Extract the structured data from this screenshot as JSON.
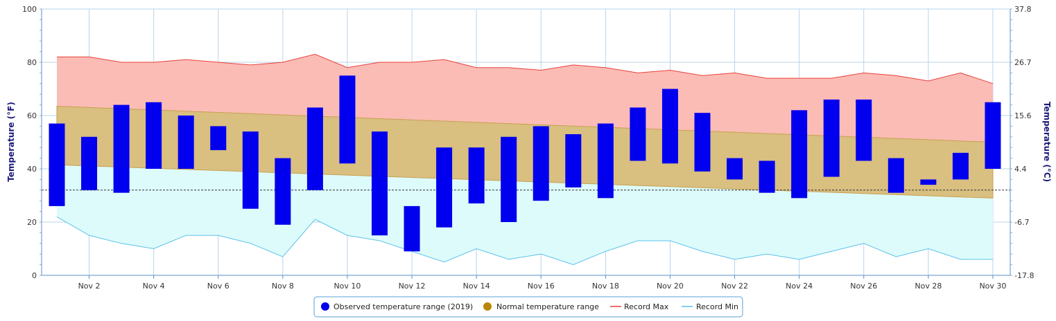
{
  "chart_data": {
    "type": "bar",
    "y_axis_left": {
      "label": "Temperature (°F)",
      "ylim": [
        0,
        100
      ],
      "ticks": [
        "0",
        "20",
        "40",
        "60",
        "80",
        "100"
      ]
    },
    "y_axis_right": {
      "label": "Temperature (°C)",
      "ticks": [
        "-17.8",
        "-6.7",
        "4.4",
        "15.6",
        "26.7",
        "37.8"
      ]
    },
    "x_labels": [
      "Nov 2",
      "Nov 4",
      "Nov 6",
      "Nov 8",
      "Nov 10",
      "Nov 12",
      "Nov 14",
      "Nov 16",
      "Nov 18",
      "Nov 20",
      "Nov 22",
      "Nov 24",
      "Nov 26",
      "Nov 28",
      "Nov 30"
    ],
    "freezing_line": 32,
    "series": [
      {
        "name": "Observed temperature range (2019)",
        "color": "#0000ee",
        "low": [
          26,
          32,
          31,
          40,
          40,
          47,
          25,
          19,
          32,
          42,
          15,
          9,
          18,
          27,
          20,
          28,
          33,
          29,
          43,
          42,
          39,
          36,
          31,
          29,
          37,
          43,
          31,
          34,
          36,
          40
        ],
        "high": [
          57,
          52,
          64,
          65,
          60,
          56,
          54,
          44,
          63,
          75,
          54,
          26,
          48,
          48,
          52,
          56,
          53,
          57,
          63,
          70,
          61,
          44,
          43,
          62,
          66,
          66,
          44,
          36,
          46,
          65
        ]
      },
      {
        "name": "Normal temperature range",
        "color": "#b8860b",
        "high_start": 63.5,
        "high_end": 50,
        "low_start": 41.5,
        "low_end": 29
      },
      {
        "name": "Record Max",
        "color": "#e8403a",
        "values": [
          82,
          82,
          80,
          80,
          81,
          80,
          79,
          80,
          83,
          78,
          80,
          80,
          81,
          78,
          78,
          77,
          79,
          78,
          76,
          77,
          75,
          76,
          74,
          74,
          74,
          76,
          75,
          73,
          76,
          72
        ]
      },
      {
        "name": "Record Min",
        "color": "#5bc0eb",
        "values": [
          22,
          15,
          12,
          10,
          15,
          15,
          12,
          7,
          21,
          15,
          13,
          9,
          5,
          10,
          6,
          8,
          4,
          9,
          13,
          13,
          9,
          6,
          8,
          6,
          9,
          12,
          7,
          10,
          6,
          6
        ]
      }
    ],
    "legend_position": "bottom-center"
  },
  "legend": {
    "observed_label": "Observed temperature range (2019)",
    "normal_label": "Normal temperature range",
    "record_max_label": "Record Max",
    "record_min_label": "Record Min"
  }
}
